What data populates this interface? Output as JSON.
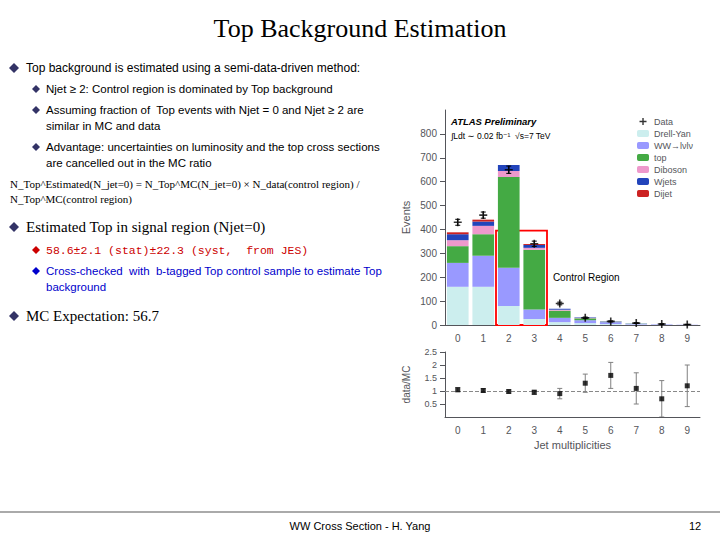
{
  "chart_data": [
    {
      "type": "bar",
      "stacked": true,
      "title": "Top Background Estimation",
      "bullet_color": "#333366",
      "annotations": [
        {
          "text": "Top background is estimated using a semi-data-driven method:"
        },
        {
          "text": "Njet ≥ 2: Control region is dominated by Top background"
        },
        {
          "text": "Assuming fraction of  Top events with Njet = 0 and Njet ≥ 2 are similar in MC and data"
        },
        {
          "text": "Advantage: uncertainties on luminosity and the top cross sections are cancelled out in the MC ratio"
        },
        {
          "text": "N_Top^Estimated(N_jet=0) = N_Top^MC(N_jet=0) × N_data(control region) / N_Top^MC(control region)"
        },
        {
          "text": "Estimated Top in signal region (Njet=0)"
        },
        {
          "text": "58.6±2.1 (stat)±22.3 (syst,  from JES)",
          "color": "#cc0000"
        },
        {
          "text": "Cross-checked  with  b-tagged Top control sample to estimate Top background",
          "color": "#0000cc"
        },
        {
          "text": "MC Expectation: 56.7"
        },
        {
          "text": "ATLAS Preliminary"
        },
        {
          "text": "∫Ldt ∼ 0.02 fb⁻¹  √s=7 TeV"
        },
        {
          "text": "WW Cross Section - H. Yang"
        },
        {
          "text": "12"
        }
      ],
      "categories": [
        "0",
        "1",
        "2",
        "3",
        "4",
        "5",
        "6",
        "7",
        "8",
        "9"
      ],
      "series": [
        {
          "name": "Drell-Yan",
          "color": "#cceeee",
          "values": [
            160,
            160,
            80,
            25,
            12,
            8,
            4,
            2,
            1,
            0
          ]
        },
        {
          "name": "WW→lνlν",
          "color": "#9999ff",
          "values": [
            100,
            130,
            160,
            40,
            18,
            12,
            8,
            4,
            2,
            1
          ]
        },
        {
          "name": "top",
          "color": "#44aa44",
          "values": [
            70,
            90,
            380,
            250,
            30,
            8,
            2,
            1,
            0,
            0
          ]
        },
        {
          "name": "Diboson",
          "color": "#ee99cc",
          "values": [
            25,
            35,
            25,
            8,
            4,
            2,
            1,
            0,
            0,
            0
          ]
        },
        {
          "name": "Wjets",
          "color": "#2244bb",
          "values": [
            25,
            18,
            25,
            12,
            4,
            2,
            1,
            0,
            0,
            0
          ]
        },
        {
          "name": "Dijet",
          "color": "#cc2222",
          "values": [
            8,
            8,
            0,
            4,
            0,
            0,
            0,
            0,
            0,
            0
          ]
        },
        {
          "name": "Data",
          "type": "scatter",
          "marker": "plus",
          "color": "#000000",
          "values": [
            430,
            460,
            650,
            340,
            90,
            30,
            15,
            8,
            4,
            2
          ],
          "errors": [
            12.44186481,
            12.86856635,
            15.29705854,
            11.06345335,
            5.692099788,
            3.286335345,
            2.323790008,
            1.697056275,
            1.2,
            0.848528137
          ]
        }
      ],
      "ylabel": "Events",
      "ylim": [
        0,
        900
      ],
      "yticks": [
        0,
        100,
        200,
        300,
        400,
        500,
        600,
        700,
        800
      ],
      "grid": false,
      "legend": "upper right",
      "control_region": {
        "label": "Control Region",
        "from": "2",
        "to": "3",
        "y": 395,
        "color": "red"
      }
    },
    {
      "type": "scatter",
      "categories": [
        "0",
        "1",
        "2",
        "3",
        "4",
        "5",
        "6",
        "7",
        "8",
        "9"
      ],
      "values": [
        1.05,
        1.02,
        0.98,
        0.95,
        0.9,
        1.3,
        1.6,
        1.1,
        0.7,
        1.2
      ],
      "errors": [
        0.08,
        0.07,
        0.06,
        0.08,
        0.2,
        0.35,
        0.5,
        0.6,
        0.7,
        0.8
      ],
      "marker": "square",
      "color": "#000000",
      "error_color": "gray",
      "reference_line": 1.0,
      "xlabel": "Jet multiplicities",
      "ylabel": "data/MC",
      "ylim": [
        0,
        2.5
      ],
      "yticks": [
        0.5,
        1,
        1.5,
        2,
        2.5
      ],
      "grid": false
    }
  ]
}
